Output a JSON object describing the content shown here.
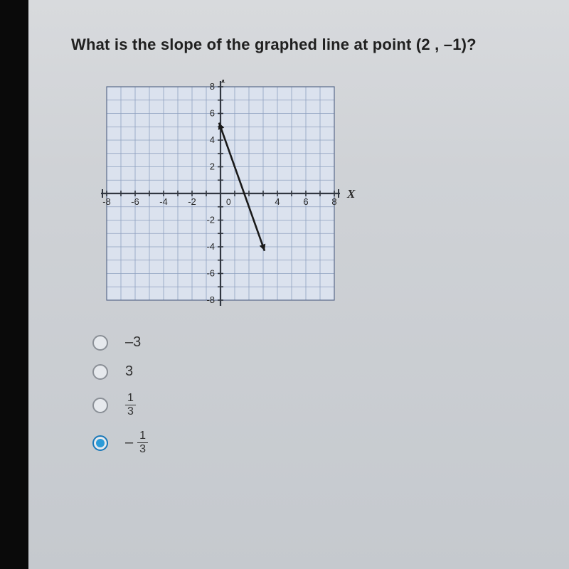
{
  "question": "What is the slope of the graphed line at point (2 , –1)?",
  "graph": {
    "size": 340,
    "grid_min": -8,
    "grid_max": 8,
    "xlabel": "X",
    "ylabel": "Y",
    "tick_labels_x_neg": [
      -8,
      -6,
      -4,
      -2
    ],
    "tick_labels_x_pos": [
      4,
      6,
      8
    ],
    "tick_labels_y_pos": [
      2,
      4,
      6,
      8
    ],
    "tick_labels_y_neg": [
      -2,
      -4,
      -6,
      -8
    ],
    "line_points": [
      [
        0,
        5
      ],
      [
        3,
        -4
      ]
    ],
    "arrow_at_both": true,
    "background": "#dbe2ee",
    "gridline_color": "#8ea0bf",
    "axis_color": "#303640",
    "line_color": "#1a1a1a",
    "label_color": "#2a2a2a",
    "font_size": 13
  },
  "options": [
    {
      "label_plain": "–3",
      "selected": false
    },
    {
      "label_plain": "3",
      "selected": false
    },
    {
      "fraction": {
        "num": "1",
        "den": "3"
      },
      "selected": false
    },
    {
      "neg_fraction": {
        "num": "1",
        "den": "3"
      },
      "selected": true
    }
  ]
}
